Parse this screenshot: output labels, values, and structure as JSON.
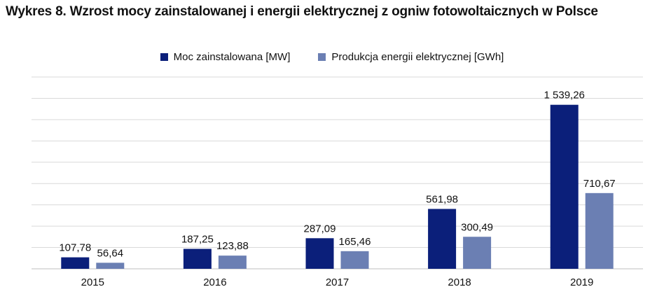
{
  "title": "Wykres 8. Wzrost mocy zainstalowanej i energii elektrycznej z ogniw fotowoltaicznych w Polsce",
  "colors": {
    "series1": "#0b1f7a",
    "series2": "#6b7fb3",
    "grid": "#d9d9d9",
    "axis": "#bfbfbf"
  },
  "chart_data": {
    "type": "bar",
    "categories": [
      "2015",
      "2016",
      "2017",
      "2018",
      "2019"
    ],
    "series": [
      {
        "name": "Moc zainstalowana [MW]",
        "values": [
          107.78,
          187.25,
          287.09,
          561.98,
          1539.26
        ],
        "labels": [
          "107,78",
          "187,25",
          "287,09",
          "561,98",
          "1 539,26"
        ]
      },
      {
        "name": "Produkcja energii elektrycznej [GWh]",
        "values": [
          56.64,
          123.88,
          165.46,
          300.49,
          710.67
        ],
        "labels": [
          "56,64",
          "123,88",
          "165,46",
          "300,49",
          "710,67"
        ]
      }
    ],
    "ylim": [
      0,
      1800
    ],
    "grid": true,
    "legend_position": "top-center"
  }
}
